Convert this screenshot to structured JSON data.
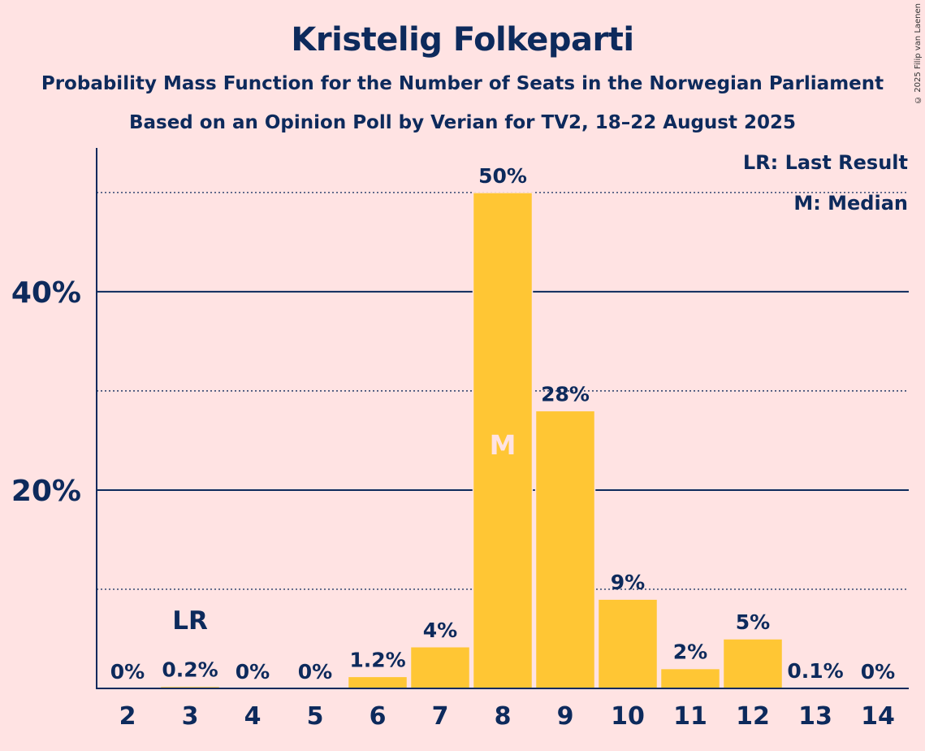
{
  "title": "Kristelig Folkeparti",
  "subtitle1": "Probability Mass Function for the Number of Seats in the Norwegian Parliament",
  "subtitle2": "Based on an Opinion Poll by Verian for TV2, 18–22 August 2025",
  "copyright": "© 2025 Filip van Laenen",
  "legend": {
    "last_result": "LR: Last Result",
    "median": "M: Median"
  },
  "colors": {
    "background": "#ffe3e3",
    "bar": "#ffc634",
    "text": "#0d2a5c"
  },
  "chart_data": {
    "type": "bar",
    "categories": [
      "2",
      "3",
      "4",
      "5",
      "6",
      "7",
      "8",
      "9",
      "10",
      "11",
      "12",
      "13",
      "14"
    ],
    "values": [
      0,
      0.2,
      0,
      0,
      1.2,
      4.2,
      50,
      28,
      9,
      2,
      5,
      0.1,
      0
    ],
    "data_labels": [
      "0%",
      "0.2%",
      "0%",
      "0%",
      "1.2%",
      "4%",
      "50%",
      "28%",
      "9%",
      "2%",
      "5%",
      "0.1%",
      "0%"
    ],
    "ylim": [
      0,
      54.5
    ],
    "yticks": [
      20,
      40
    ],
    "ytick_labels": [
      "20%",
      "40%"
    ],
    "minor_gridlines": [
      10,
      30,
      50
    ],
    "last_result_category": "3",
    "last_result_label": "LR",
    "median_category": "8",
    "median_label": "M",
    "grid": true,
    "legend_position": "top-right"
  }
}
